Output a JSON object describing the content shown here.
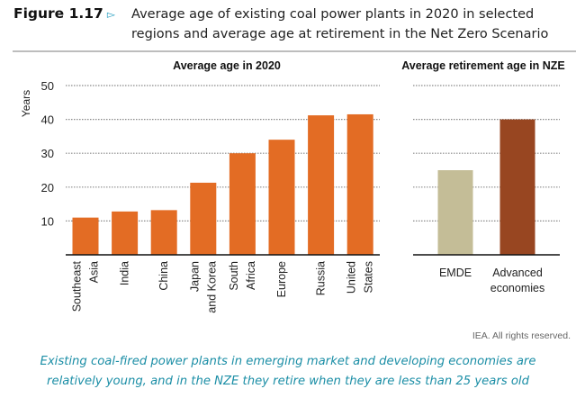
{
  "figure": {
    "label": "Figure 1.17",
    "arrow_icon": "▻",
    "title_line1": "Average age of existing coal power plants in 2020 in selected",
    "title_line2": "regions and average age at retirement in the Net Zero Scenario"
  },
  "source": "IEA. All rights reserved.",
  "caption": {
    "line1": "Existing coal-fired power plants in emerging market and developing economies are",
    "line2": "relatively young, and in the NZE they retire when they are less than 25 years old"
  },
  "colors": {
    "orange": "#e36c24",
    "beige": "#c4bd97",
    "brown": "#984621",
    "grid": "#8a8a8a",
    "axis": "#111111",
    "caption": "#1b8ea6"
  },
  "chart_data": [
    {
      "type": "bar",
      "title": "Average age in 2020",
      "xlabel": "",
      "ylabel": "Years",
      "ylim": [
        0,
        50
      ],
      "yticks": [
        10,
        20,
        30,
        40,
        50
      ],
      "grid": true,
      "categories": [
        [
          "Southeast",
          "Asia"
        ],
        [
          "India"
        ],
        [
          "China"
        ],
        [
          "Japan",
          "and Korea"
        ],
        [
          "South",
          "Africa"
        ],
        [
          "Europe"
        ],
        [
          "Russia"
        ],
        [
          "United",
          "States"
        ]
      ],
      "values": [
        11,
        12.8,
        13.2,
        21.3,
        30,
        34,
        41.2,
        41.5
      ],
      "bar_colors": [
        "orange",
        "orange",
        "orange",
        "orange",
        "orange",
        "orange",
        "orange",
        "orange"
      ]
    },
    {
      "type": "bar",
      "title": "Average retirement age in NZE",
      "xlabel": "",
      "ylabel": "",
      "ylim": [
        0,
        50
      ],
      "grid": true,
      "categories": [
        [
          "EMDE"
        ],
        [
          "Advanced",
          "economies"
        ]
      ],
      "values": [
        25,
        40
      ],
      "bar_colors": [
        "beige",
        "brown"
      ]
    }
  ]
}
